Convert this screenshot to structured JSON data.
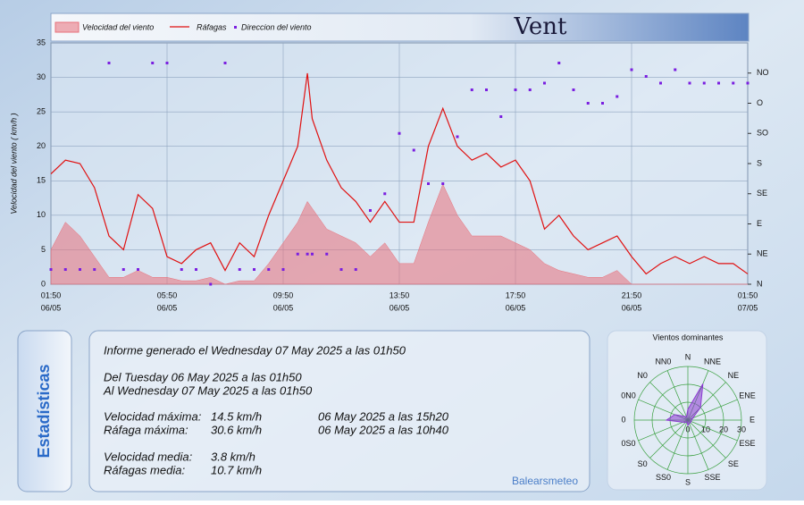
{
  "logo": "Vent",
  "sidebar": "Estadísticas",
  "footer": "Balearsmeteo",
  "stats": {
    "generated": "Informe generado el Wednesday 07 May 2025 a las 01h50",
    "from": "Del Tuesday 06 May 2025 a las 01h50",
    "to": "Al Wednesday 07 May 2025 a las 01h50",
    "rows": [
      [
        "Velocidad máxima:",
        "14.5 km/h",
        "06 May 2025 a las 15h20"
      ],
      [
        "Ráfaga máxima:",
        "30.6 km/h",
        "06 May 2025 a las 10h40"
      ],
      [
        "Velocidad media:",
        "3.8 km/h"
      ],
      [
        "Ráfagas media:",
        "10.7 km/h"
      ]
    ]
  },
  "chart_data": [
    {
      "type": "line",
      "y_label": "Velocidad del viento  ( km/h )",
      "x": [
        "06/05 01:50",
        "06/05 02:20",
        "06/05 02:50",
        "06/05 03:20",
        "06/05 03:50",
        "06/05 04:20",
        "06/05 04:50",
        "06/05 05:20",
        "06/05 05:50",
        "06/05 06:20",
        "06/05 06:50",
        "06/05 07:20",
        "06/05 07:50",
        "06/05 08:20",
        "06/05 08:50",
        "06/05 09:20",
        "06/05 09:50",
        "06/05 10:20",
        "06/05 10:40",
        "06/05 10:50",
        "06/05 11:20",
        "06/05 11:50",
        "06/05 12:20",
        "06/05 12:50",
        "06/05 13:20",
        "06/05 13:50",
        "06/05 14:20",
        "06/05 14:50",
        "06/05 15:20",
        "06/05 15:50",
        "06/05 16:20",
        "06/05 16:50",
        "06/05 17:20",
        "06/05 17:50",
        "06/05 18:20",
        "06/05 18:50",
        "06/05 19:20",
        "06/05 19:50",
        "06/05 20:20",
        "06/05 20:50",
        "06/05 21:20",
        "06/05 21:50",
        "06/05 22:20",
        "06/05 22:50",
        "06/05 23:20",
        "06/05 23:50",
        "07/05 00:20",
        "07/05 00:50",
        "07/05 01:20",
        "07/05 01:50"
      ],
      "series": [
        {
          "name": "Velocidad del viento",
          "type": "area",
          "color": "#e8707a",
          "values": [
            5,
            9,
            7,
            4,
            1,
            1,
            2,
            1,
            1,
            0.5,
            0.5,
            1,
            0,
            0.5,
            0.5,
            3,
            6,
            9,
            12,
            11,
            8,
            7,
            6,
            4,
            6,
            3,
            3,
            9,
            14.5,
            10,
            7,
            7,
            7,
            6,
            5,
            3,
            2,
            1.5,
            1,
            1,
            2,
            0,
            0,
            0,
            0,
            0,
            0,
            0,
            0,
            0
          ]
        },
        {
          "name": "Ráfagas",
          "type": "line",
          "color": "#e01010",
          "values": [
            16,
            18,
            17.5,
            14,
            7,
            5,
            13,
            11,
            4,
            3,
            5,
            6,
            2,
            6,
            4,
            10,
            15,
            20,
            30.6,
            24,
            18,
            14,
            12,
            9,
            12,
            9,
            9,
            20,
            25.5,
            20,
            18,
            19,
            17,
            18,
            15,
            8,
            10,
            7,
            5,
            6,
            7,
            4,
            1.5,
            3,
            4,
            3,
            4,
            3,
            3,
            1.5
          ]
        },
        {
          "name": "Direccion del viento",
          "type": "scatter",
          "axis": "y2",
          "color": "#7a1ee0",
          "values": [
            22,
            22,
            22,
            22,
            330,
            22,
            22,
            330,
            330,
            22,
            22,
            0,
            330,
            22,
            22,
            22,
            22,
            45,
            45,
            45,
            45,
            22,
            22,
            110,
            135,
            225,
            200,
            150,
            150,
            220,
            290,
            290,
            250,
            290,
            290,
            300,
            330,
            290,
            270,
            270,
            280,
            320,
            310,
            300,
            320,
            300,
            300,
            300,
            300,
            300
          ]
        }
      ],
      "xlim": [
        "06/05 01:50",
        "07/05 01:50"
      ],
      "xticks": [
        {
          "value": "06/05 01:50",
          "label": [
            "01:50",
            "06/05"
          ]
        },
        {
          "value": "06/05 05:50",
          "label": [
            "05:50",
            "06/05"
          ]
        },
        {
          "value": "06/05 09:50",
          "label": [
            "09:50",
            "06/05"
          ]
        },
        {
          "value": "06/05 13:50",
          "label": [
            "13:50",
            "06/05"
          ]
        },
        {
          "value": "06/05 17:50",
          "label": [
            "17:50",
            "06/05"
          ]
        },
        {
          "value": "06/05 21:50",
          "label": [
            "21:50",
            "06/05"
          ]
        },
        {
          "value": "07/05 01:50",
          "label": [
            "01:50",
            "07/05"
          ]
        }
      ],
      "ylim": [
        0,
        35
      ],
      "yticks": [
        0,
        5,
        10,
        15,
        20,
        25,
        30,
        35
      ],
      "y2lim": [
        0,
        360
      ],
      "y2ticks": [
        {
          "value": 0,
          "label": "N"
        },
        {
          "value": 45,
          "label": "NE"
        },
        {
          "value": 90,
          "label": "E"
        },
        {
          "value": 135,
          "label": "SE"
        },
        {
          "value": 180,
          "label": "S"
        },
        {
          "value": 225,
          "label": "SO"
        },
        {
          "value": 270,
          "label": "O"
        },
        {
          "value": 315,
          "label": "NO"
        }
      ],
      "grid": true
    },
    {
      "type": "radar",
      "title": "Vientos dominantes",
      "categories": [
        "N",
        "NNE",
        "NE",
        "ENE",
        "E",
        "ESE",
        "SE",
        "SSE",
        "S",
        "SS0",
        "S0",
        "0S0",
        "0",
        "0N0",
        "N0",
        "NN0"
      ],
      "values": [
        6,
        22,
        10,
        3,
        2,
        2,
        2,
        2,
        3,
        1,
        2,
        3,
        12,
        8,
        3,
        2
      ],
      "color": "#8a3ad0",
      "rlim": [
        0,
        30
      ],
      "rticks": [
        0,
        10,
        20,
        30
      ]
    }
  ]
}
